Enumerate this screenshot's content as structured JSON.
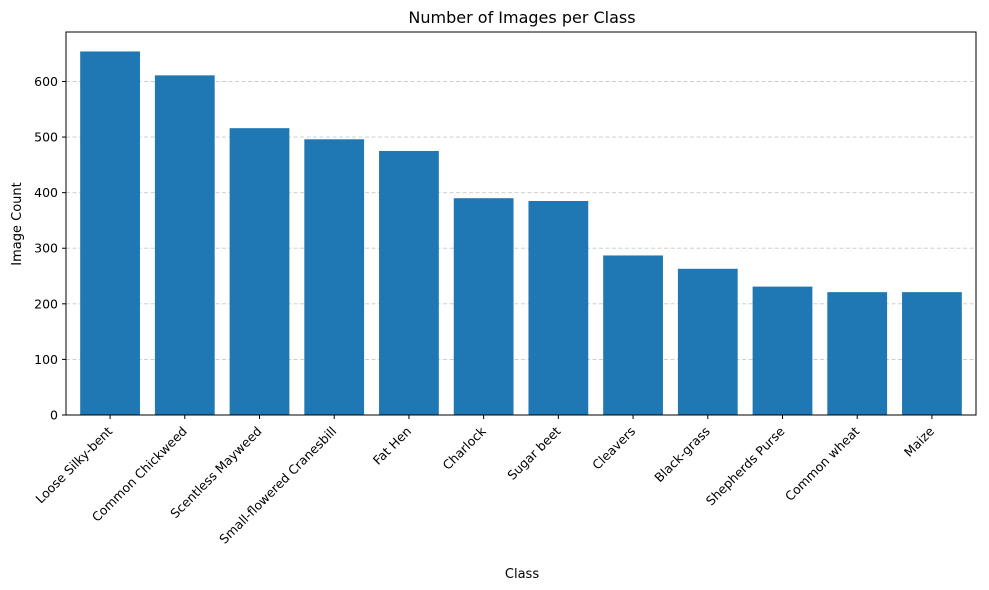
{
  "chart_data": {
    "type": "bar",
    "title": "Number of Images per Class",
    "xlabel": "Class",
    "ylabel": "Image Count",
    "categories": [
      "Loose Silky-bent",
      "Common Chickweed",
      "Scentless Mayweed",
      "Small-flowered Cranesbill",
      "Fat Hen",
      "Charlock",
      "Sugar beet",
      "Cleavers",
      "Black-grass",
      "Shepherds Purse",
      "Common wheat",
      "Maize"
    ],
    "values": [
      654,
      611,
      516,
      496,
      475,
      390,
      385,
      287,
      263,
      231,
      221,
      221
    ],
    "ylim": [
      0,
      689
    ],
    "yticks": [
      0,
      100,
      200,
      300,
      400,
      500,
      600
    ],
    "grid": "y-axis dashed",
    "bar_color": "#1f77b4",
    "grid_color": "#c8c8c8",
    "xtick_rotation_deg": 45
  }
}
